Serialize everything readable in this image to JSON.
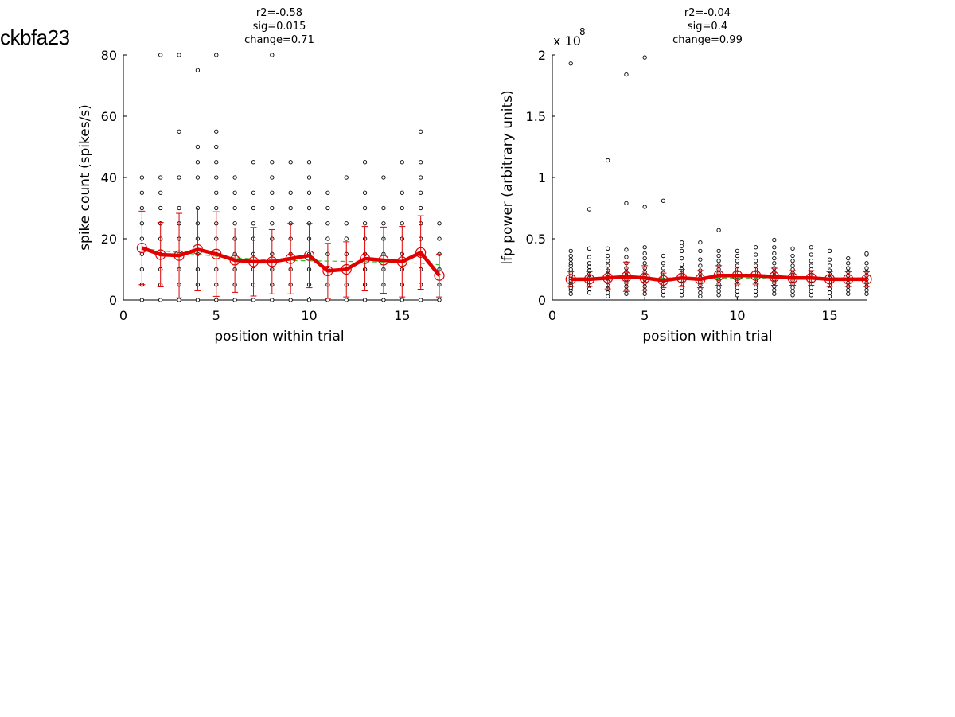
{
  "figure_title": "ckbfa23",
  "chart_data": [
    {
      "type": "scatter",
      "annotations": [
        "r2=-0.58",
        "sig=0.015",
        "change=0.71"
      ],
      "xlabel": "position within trial",
      "ylabel": "spike count (spikes/s)",
      "xlim": [
        0,
        17
      ],
      "ylim": [
        0,
        80
      ],
      "xticks": [
        "0",
        "5",
        "10",
        "15"
      ],
      "xtick_values": [
        0,
        5,
        10,
        15
      ],
      "yticks": [
        "0",
        "20",
        "40",
        "60",
        "80"
      ],
      "ytick_values": [
        0,
        20,
        40,
        60,
        80
      ],
      "multiplier": "",
      "multiplier_exp": "",
      "x": [
        1,
        2,
        3,
        4,
        5,
        6,
        7,
        8,
        9,
        10,
        11,
        12,
        13,
        14,
        15,
        16,
        17
      ],
      "points": [
        [
          0,
          5,
          10,
          15,
          20,
          25,
          30,
          35,
          40
        ],
        [
          0,
          5,
          10,
          15,
          20,
          25,
          30,
          35,
          40,
          80
        ],
        [
          0,
          5,
          10,
          15,
          20,
          25,
          30,
          40,
          55,
          80
        ],
        [
          0,
          5,
          10,
          15,
          20,
          25,
          30,
          40,
          45,
          50,
          75
        ],
        [
          0,
          5,
          10,
          15,
          20,
          25,
          30,
          35,
          40,
          45,
          50,
          55,
          80
        ],
        [
          0,
          5,
          10,
          15,
          20,
          25,
          30,
          35,
          40
        ],
        [
          0,
          5,
          10,
          15,
          20,
          25,
          30,
          35,
          45
        ],
        [
          0,
          5,
          10,
          15,
          20,
          25,
          30,
          35,
          40,
          45,
          80
        ],
        [
          0,
          5,
          10,
          15,
          20,
          25,
          30,
          35,
          45
        ],
        [
          0,
          5,
          10,
          15,
          20,
          25,
          30,
          35,
          40,
          45
        ],
        [
          0,
          5,
          10,
          15,
          20,
          25,
          30,
          35
        ],
        [
          0,
          5,
          10,
          15,
          20,
          25,
          40
        ],
        [
          0,
          5,
          10,
          15,
          20,
          25,
          30,
          35,
          45
        ],
        [
          0,
          5,
          10,
          15,
          20,
          25,
          30,
          40
        ],
        [
          0,
          5,
          10,
          15,
          20,
          25,
          30,
          35,
          45
        ],
        [
          0,
          5,
          10,
          15,
          20,
          25,
          30,
          35,
          40,
          45,
          55
        ],
        [
          0,
          5,
          10,
          15,
          20,
          25
        ]
      ],
      "series": [
        {
          "values": [
            17,
            14.8,
            14.5,
            16.5,
            15,
            13,
            12.5,
            12.5,
            13.5,
            14.5,
            9.5,
            10,
            13.5,
            13,
            12.5,
            15.5,
            8
          ],
          "err": [
            12,
            10.5,
            13.8,
            13.5,
            13.8,
            10.5,
            11.2,
            10.5,
            11.5,
            10.5,
            9,
            9,
            10.5,
            10.8,
            11.5,
            12,
            7
          ],
          "color": "#e00000"
        },
        {
          "values": [
            16.8,
            16.1,
            15.5,
            14.9,
            14.3,
            13.8,
            13.4,
            13.1,
            12.9,
            12.8,
            12.7,
            12.6,
            12.5,
            12.4,
            12.2,
            12.0,
            11.5
          ],
          "color": "#33bb33",
          "style": "dashed"
        }
      ]
    },
    {
      "type": "scatter",
      "annotations": [
        "r2=-0.04",
        "sig=0.4",
        "change=0.99"
      ],
      "xlabel": "position within trial",
      "ylabel": "lfp power (arbitrary units)",
      "xlim": [
        0,
        17
      ],
      "ylim": [
        0,
        2
      ],
      "xticks": [
        "0",
        "5",
        "10",
        "15"
      ],
      "xtick_values": [
        0,
        5,
        10,
        15
      ],
      "yticks": [
        "0",
        "0.5",
        "1",
        "1.5",
        "2"
      ],
      "ytick_values": [
        0,
        0.5,
        1,
        1.5,
        2
      ],
      "multiplier": "x 10",
      "multiplier_exp": "8",
      "x": [
        1,
        2,
        3,
        4,
        5,
        6,
        7,
        8,
        9,
        10,
        11,
        12,
        13,
        14,
        15,
        16,
        17
      ],
      "points": [
        [
          0.05,
          0.08,
          0.1,
          0.12,
          0.14,
          0.16,
          0.18,
          0.2,
          0.22,
          0.25,
          0.28,
          0.3,
          0.33,
          0.36,
          0.4,
          1.93
        ],
        [
          0.06,
          0.09,
          0.12,
          0.15,
          0.18,
          0.21,
          0.24,
          0.27,
          0.3,
          0.35,
          0.42,
          0.74
        ],
        [
          0.03,
          0.06,
          0.09,
          0.12,
          0.15,
          0.18,
          0.21,
          0.24,
          0.28,
          0.32,
          0.36,
          0.42,
          1.14
        ],
        [
          0.05,
          0.08,
          0.11,
          0.14,
          0.17,
          0.2,
          0.23,
          0.26,
          0.3,
          0.35,
          0.41,
          0.79,
          1.84
        ],
        [
          0.05,
          0.08,
          0.11,
          0.14,
          0.17,
          0.2,
          0.23,
          0.26,
          0.3,
          0.34,
          0.38,
          0.43,
          0.76,
          1.98
        ],
        [
          0.04,
          0.07,
          0.1,
          0.13,
          0.16,
          0.19,
          0.22,
          0.26,
          0.3,
          0.36,
          0.81
        ],
        [
          0.04,
          0.07,
          0.1,
          0.13,
          0.16,
          0.19,
          0.22,
          0.25,
          0.29,
          0.34,
          0.4,
          0.44,
          0.47
        ],
        [
          0.03,
          0.06,
          0.09,
          0.12,
          0.15,
          0.18,
          0.21,
          0.24,
          0.28,
          0.33,
          0.4,
          0.47
        ],
        [
          0.04,
          0.07,
          0.1,
          0.13,
          0.16,
          0.19,
          0.22,
          0.25,
          0.28,
          0.32,
          0.36,
          0.4,
          0.57
        ],
        [
          0.04,
          0.07,
          0.1,
          0.13,
          0.16,
          0.19,
          0.22,
          0.25,
          0.28,
          0.32,
          0.36,
          0.4
        ],
        [
          0.04,
          0.07,
          0.1,
          0.13,
          0.16,
          0.19,
          0.22,
          0.25,
          0.28,
          0.32,
          0.37,
          0.43
        ],
        [
          0.05,
          0.08,
          0.11,
          0.14,
          0.17,
          0.2,
          0.23,
          0.26,
          0.3,
          0.34,
          0.38,
          0.43,
          0.49
        ],
        [
          0.04,
          0.07,
          0.1,
          0.13,
          0.16,
          0.19,
          0.22,
          0.25,
          0.28,
          0.32,
          0.36,
          0.42
        ],
        [
          0.04,
          0.07,
          0.1,
          0.13,
          0.16,
          0.19,
          0.22,
          0.25,
          0.28,
          0.32,
          0.37,
          0.43
        ],
        [
          0.03,
          0.06,
          0.09,
          0.12,
          0.15,
          0.18,
          0.21,
          0.24,
          0.28,
          0.33,
          0.4
        ],
        [
          0.05,
          0.08,
          0.11,
          0.14,
          0.17,
          0.2,
          0.23,
          0.26,
          0.3,
          0.34
        ],
        [
          0.05,
          0.08,
          0.11,
          0.14,
          0.17,
          0.2,
          0.23,
          0.26,
          0.3,
          0.37,
          0.38
        ]
      ],
      "series": [
        {
          "values": [
            0.17,
            0.17,
            0.18,
            0.19,
            0.18,
            0.16,
            0.18,
            0.17,
            0.2,
            0.2,
            0.2,
            0.19,
            0.18,
            0.18,
            0.17,
            0.17,
            0.17
          ],
          "err": [
            0.06,
            0.06,
            0.09,
            0.12,
            0.1,
            0.06,
            0.07,
            0.07,
            0.08,
            0.07,
            0.07,
            0.07,
            0.06,
            0.06,
            0.06,
            0.06,
            0.06
          ],
          "color": "#e00000"
        },
        {
          "values": [
            0.18,
            0.18,
            0.18,
            0.18,
            0.18,
            0.18,
            0.18,
            0.18,
            0.18,
            0.18,
            0.18,
            0.18,
            0.18,
            0.18,
            0.18,
            0.18,
            0.18
          ],
          "color": "#33bb33",
          "style": "dashed"
        }
      ]
    }
  ]
}
